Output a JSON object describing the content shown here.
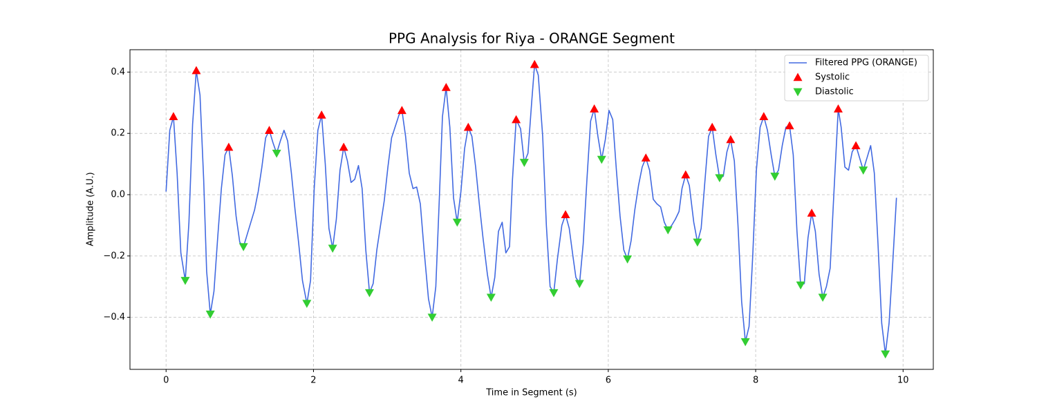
{
  "chart_data": {
    "type": "line",
    "title": "PPG Analysis for Riya - ORANGE Segment",
    "xlabel": "Time in Segment (s)",
    "ylabel": "Amplitude (A.U.)",
    "xlim": [
      -0.49,
      10.41
    ],
    "ylim": [
      -0.57,
      0.473
    ],
    "xticks": [
      0,
      2,
      4,
      6,
      8,
      10
    ],
    "yticks": [
      {
        "value": -0.4,
        "label": "−0.4"
      },
      {
        "value": -0.2,
        "label": "−0.2"
      },
      {
        "value": 0,
        "label": "0.0"
      },
      0.2,
      0.4
    ],
    "grid": true,
    "legend": "upper right",
    "series": [
      {
        "name": "Filtered PPG (ORANGE)",
        "color": "#4169e1",
        "kind": "line",
        "x": [
          0,
          0.05,
          0.1,
          0.15,
          0.2,
          0.26,
          0.31,
          0.36,
          0.41,
          0.46,
          0.51,
          0.55,
          0.6,
          0.65,
          0.7,
          0.75,
          0.8,
          0.85,
          0.9,
          0.95,
          1.0,
          1.05,
          1.1,
          1.2,
          1.25,
          1.3,
          1.35,
          1.4,
          1.45,
          1.5,
          1.55,
          1.6,
          1.65,
          1.7,
          1.75,
          1.8,
          1.85,
          1.91,
          1.96,
          2.01,
          2.06,
          2.11,
          2.16,
          2.21,
          2.26,
          2.31,
          2.36,
          2.41,
          2.46,
          2.51,
          2.56,
          2.61,
          2.66,
          2.71,
          2.76,
          2.81,
          2.86,
          2.96,
          3.01,
          3.06,
          3.16,
          3.2,
          3.25,
          3.3,
          3.35,
          3.4,
          3.45,
          3.5,
          3.56,
          3.61,
          3.66,
          3.71,
          3.75,
          3.8,
          3.85,
          3.9,
          3.95,
          4.0,
          4.05,
          4.1,
          4.15,
          4.2,
          4.25,
          4.3,
          4.36,
          4.41,
          4.46,
          4.51,
          4.56,
          4.61,
          4.66,
          4.7,
          4.75,
          4.81,
          4.86,
          4.91,
          4.96,
          5.0,
          5.05,
          5.11,
          5.16,
          5.21,
          5.26,
          5.31,
          5.37,
          5.42,
          5.47,
          5.52,
          5.56,
          5.61,
          5.66,
          5.71,
          5.76,
          5.81,
          5.86,
          5.91,
          5.96,
          6.01,
          6.06,
          6.11,
          6.16,
          6.21,
          6.26,
          6.31,
          6.36,
          6.41,
          6.46,
          6.51,
          6.56,
          6.61,
          6.66,
          6.71,
          6.76,
          6.81,
          6.86,
          6.91,
          6.96,
          7.0,
          7.05,
          7.1,
          7.16,
          7.21,
          7.26,
          7.31,
          7.36,
          7.41,
          7.46,
          7.51,
          7.56,
          7.61,
          7.66,
          7.71,
          7.76,
          7.81,
          7.86,
          7.91,
          7.96,
          8.01,
          8.06,
          8.11,
          8.16,
          8.21,
          8.26,
          8.31,
          8.36,
          8.41,
          8.46,
          8.51,
          8.56,
          8.61,
          8.66,
          8.71,
          8.76,
          8.81,
          8.86,
          8.91,
          8.96,
          9.01,
          9.06,
          9.12,
          9.16,
          9.21,
          9.26,
          9.31,
          9.36,
          9.41,
          9.46,
          9.51,
          9.56,
          9.61,
          9.66,
          9.71,
          9.76,
          9.81,
          9.86,
          9.91
        ],
        "values": [
          0.01,
          0.21,
          0.255,
          0.07,
          -0.19,
          -0.28,
          -0.09,
          0.23,
          0.405,
          0.325,
          0.05,
          -0.25,
          -0.39,
          -0.315,
          -0.14,
          0.02,
          0.13,
          0.155,
          0.06,
          -0.07,
          -0.155,
          -0.17,
          -0.13,
          -0.05,
          0.01,
          0.09,
          0.185,
          0.21,
          0.17,
          0.135,
          0.175,
          0.21,
          0.175,
          0.07,
          -0.05,
          -0.16,
          -0.28,
          -0.355,
          -0.28,
          0.02,
          0.21,
          0.26,
          0.1,
          -0.11,
          -0.175,
          -0.08,
          0.08,
          0.155,
          0.11,
          0.04,
          0.05,
          0.095,
          0.02,
          -0.18,
          -0.32,
          -0.29,
          -0.18,
          -0.02,
          0.09,
          0.185,
          0.26,
          0.275,
          0.19,
          0.07,
          0.02,
          0.025,
          -0.03,
          -0.18,
          -0.34,
          -0.4,
          -0.3,
          0.0,
          0.255,
          0.35,
          0.22,
          -0.01,
          -0.09,
          0.01,
          0.15,
          0.22,
          0.19,
          0.09,
          -0.03,
          -0.14,
          -0.26,
          -0.335,
          -0.27,
          -0.12,
          -0.09,
          -0.19,
          -0.17,
          0.05,
          0.245,
          0.215,
          0.105,
          0.135,
          0.3,
          0.425,
          0.39,
          0.19,
          -0.1,
          -0.3,
          -0.32,
          -0.21,
          -0.1,
          -0.065,
          -0.11,
          -0.2,
          -0.27,
          -0.29,
          -0.16,
          0.05,
          0.24,
          0.28,
          0.19,
          0.115,
          0.18,
          0.275,
          0.245,
          0.08,
          -0.07,
          -0.18,
          -0.21,
          -0.15,
          -0.05,
          0.03,
          0.09,
          0.12,
          0.08,
          -0.015,
          -0.03,
          -0.04,
          -0.09,
          -0.115,
          -0.1,
          -0.08,
          -0.055,
          0.02,
          0.065,
          0.03,
          -0.09,
          -0.155,
          -0.11,
          0.04,
          0.19,
          0.22,
          0.13,
          0.055,
          0.06,
          0.14,
          0.18,
          0.11,
          -0.1,
          -0.35,
          -0.48,
          -0.43,
          -0.2,
          0.08,
          0.22,
          0.255,
          0.21,
          0.13,
          0.06,
          0.08,
          0.16,
          0.22,
          0.225,
          0.13,
          -0.12,
          -0.295,
          -0.29,
          -0.14,
          -0.06,
          -0.12,
          -0.26,
          -0.335,
          -0.3,
          -0.24,
          0.0,
          0.28,
          0.22,
          0.09,
          0.08,
          0.14,
          0.16,
          0.12,
          0.08,
          0.12,
          0.16,
          0.07,
          -0.16,
          -0.42,
          -0.52,
          -0.42,
          -0.22,
          -0.01
        ]
      },
      {
        "name": "Systolic",
        "color": "#ff0000",
        "kind": "marker-up",
        "x": [
          0.1,
          0.41,
          0.85,
          1.4,
          2.11,
          2.41,
          3.2,
          3.8,
          4.1,
          4.75,
          5.0,
          5.42,
          5.81,
          6.51,
          7.05,
          7.41,
          7.66,
          8.11,
          8.46,
          8.76,
          9.12,
          9.36
        ],
        "values": [
          0.255,
          0.405,
          0.155,
          0.21,
          0.26,
          0.155,
          0.275,
          0.35,
          0.22,
          0.245,
          0.425,
          -0.065,
          0.28,
          0.12,
          0.065,
          0.22,
          0.18,
          0.255,
          0.225,
          -0.06,
          0.28,
          0.16
        ]
      },
      {
        "name": "Diastolic",
        "color": "#32cd32",
        "kind": "marker-down",
        "x": [
          0.26,
          0.6,
          1.05,
          1.5,
          1.91,
          2.26,
          2.76,
          3.61,
          3.95,
          4.41,
          4.86,
          5.26,
          5.61,
          5.91,
          6.26,
          6.81,
          7.21,
          7.51,
          7.86,
          8.26,
          8.61,
          8.91,
          9.46,
          9.76
        ],
        "values": [
          -0.28,
          -0.39,
          -0.17,
          0.135,
          -0.355,
          -0.175,
          -0.32,
          -0.4,
          -0.09,
          -0.335,
          0.105,
          -0.32,
          -0.29,
          0.115,
          -0.21,
          -0.115,
          -0.155,
          0.055,
          -0.48,
          0.06,
          -0.295,
          -0.335,
          0.08,
          -0.52
        ]
      }
    ]
  }
}
